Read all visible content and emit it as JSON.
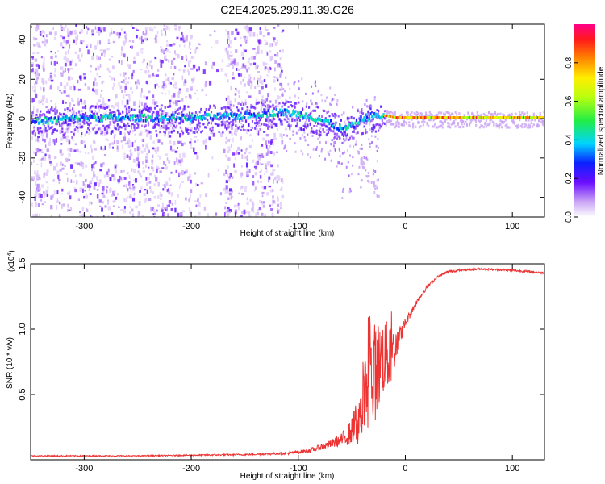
{
  "title": "C2E4.2025.299.11.39.G26",
  "chart_data": [
    {
      "type": "heatmap",
      "xlabel": "Height of straight line (km)",
      "ylabel": "Frequency (Hz)",
      "xlim": [
        -350,
        130
      ],
      "ylim": [
        -50,
        48
      ],
      "xticks": [
        -300,
        -200,
        -100,
        0,
        100
      ],
      "xtick_labels": [
        "-300",
        "-200",
        "-100",
        "0",
        "100"
      ],
      "yticks": [
        -40,
        -20,
        0,
        20,
        40
      ],
      "ytick_labels": [
        "-40",
        "-20",
        "0",
        "20",
        "40"
      ],
      "ridge": {
        "x": [
          -350,
          -300,
          -250,
          -200,
          -150,
          -120,
          -100,
          -85,
          -70,
          -60,
          -50,
          -40,
          -30,
          -20,
          -10,
          0,
          50,
          100,
          130
        ],
        "freq": [
          -2,
          0,
          0,
          0,
          1,
          3,
          2,
          0,
          -3,
          -6,
          -4,
          0,
          1,
          1,
          0,
          0,
          0,
          0,
          0
        ]
      },
      "colorbar": {
        "label": "Normalized spectral amplitude",
        "range": [
          0,
          1
        ],
        "ticks": [
          0.0,
          0.2,
          0.4,
          0.6,
          0.8
        ],
        "tick_labels": [
          "0.0",
          "0.2",
          "0.4",
          "0.6",
          "0.8"
        ]
      }
    },
    {
      "type": "line",
      "xlabel": "Height of straight line (km)",
      "ylabel": "SNR (10 * v/v)",
      "multiplier": "(x10",
      "multiplier_exp": "4",
      "multiplier_close": ")",
      "xlim": [
        -350,
        130
      ],
      "ylim": [
        0,
        1.5
      ],
      "xticks": [
        -300,
        -200,
        -100,
        0,
        100
      ],
      "xtick_labels": [
        "-300",
        "-200",
        "-100",
        "0",
        "100"
      ],
      "yticks": [
        0.5,
        1.0,
        1.5
      ],
      "ytick_labels": [
        "0.5",
        "1.0",
        "1.5"
      ],
      "series": [
        {
          "name": "SNR",
          "color": "#ee3333",
          "x": [
            -350,
            -250,
            -150,
            -110,
            -90,
            -70,
            -60,
            -50,
            -45,
            -40,
            -35,
            -30,
            -25,
            -20,
            -15,
            -10,
            -5,
            0,
            10,
            20,
            30,
            40,
            50,
            70,
            100,
            130
          ],
          "value": [
            0.03,
            0.03,
            0.04,
            0.05,
            0.07,
            0.12,
            0.15,
            0.22,
            0.3,
            0.4,
            0.55,
            0.65,
            0.72,
            0.8,
            0.78,
            0.85,
            0.95,
            1.05,
            1.2,
            1.32,
            1.4,
            1.44,
            1.45,
            1.46,
            1.45,
            1.43
          ],
          "noise": [
            0.004,
            0.004,
            0.006,
            0.01,
            0.015,
            0.03,
            0.05,
            0.1,
            0.2,
            0.3,
            0.4,
            0.4,
            0.35,
            0.3,
            0.25,
            0.15,
            0.08,
            0.04,
            0.02,
            0.015,
            0.01,
            0.01,
            0.008,
            0.008,
            0.008,
            0.008
          ]
        }
      ]
    }
  ]
}
